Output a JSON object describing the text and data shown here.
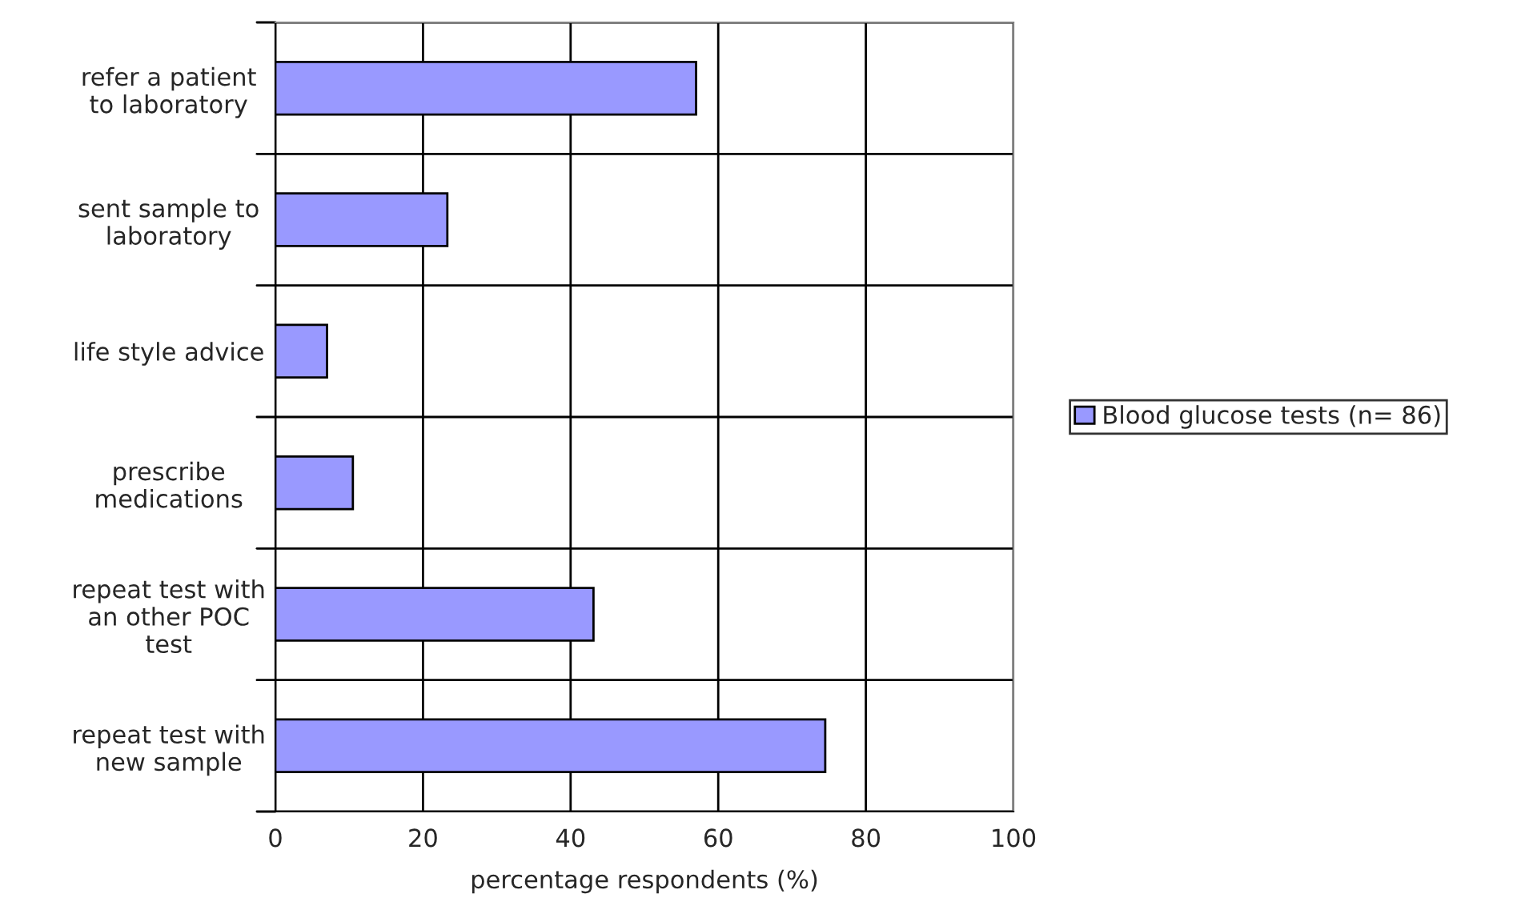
{
  "chart_data": {
    "type": "bar",
    "orientation": "horizontal",
    "xlabel": "percentage respondents (%)",
    "categories": [
      "refer a patient\nto laboratory",
      "sent sample to\nlaboratory",
      "life style advice",
      "prescribe\nmedications",
      "repeat test with\nan other POC\ntest",
      "repeat test with\nnew sample"
    ],
    "series": [
      {
        "name": "Blood glucose tests (n= 86)",
        "color": "#9999ff",
        "values": [
          57.0,
          23.3,
          7.0,
          10.5,
          43.1,
          74.5
        ]
      }
    ],
    "xlim": [
      0,
      100
    ],
    "xticks": [
      0,
      20,
      40,
      60,
      80,
      100
    ],
    "grid": true,
    "legend": "right"
  }
}
